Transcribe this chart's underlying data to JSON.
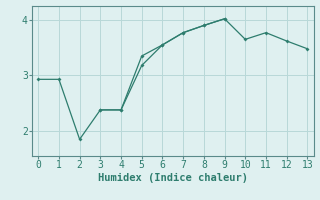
{
  "xlabel": "Humidex (Indice chaleur)",
  "background_color": "#dff0f0",
  "plot_bg_color": "#dff0f0",
  "line_color": "#2e7d6e",
  "grid_color": "#b8d8d8",
  "spine_color": "#5a8a8a",
  "line1_x": [
    0,
    1,
    2,
    3,
    4,
    5,
    6,
    7,
    8,
    9
  ],
  "line1_y": [
    2.93,
    2.93,
    1.85,
    2.38,
    2.38,
    3.18,
    3.55,
    3.77,
    3.9,
    4.02
  ],
  "line2_x": [
    3,
    4,
    5,
    6,
    7,
    8,
    9,
    10,
    11,
    12,
    13
  ],
  "line2_y": [
    2.38,
    2.38,
    3.35,
    3.55,
    3.77,
    3.9,
    4.02,
    3.65,
    3.77,
    3.62,
    3.48
  ],
  "xlim": [
    -0.3,
    13.3
  ],
  "ylim": [
    1.55,
    4.25
  ],
  "xticks": [
    0,
    1,
    2,
    3,
    4,
    5,
    6,
    7,
    8,
    9,
    10,
    11,
    12,
    13
  ],
  "yticks": [
    2,
    3,
    4
  ],
  "xlabel_fontsize": 7.5,
  "tick_fontsize": 7
}
